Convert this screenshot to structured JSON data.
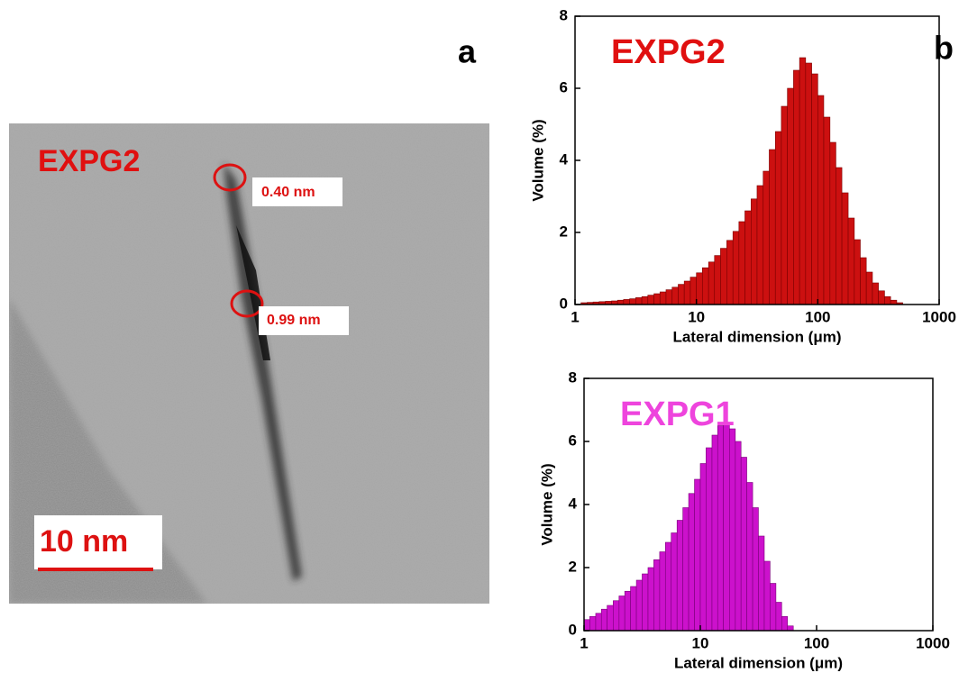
{
  "panel_a": {
    "label": "a",
    "title": "EXPG2",
    "annotations": [
      "0.40 nm",
      "0.99 nm"
    ],
    "scale_bar": "10 nm"
  },
  "panel_b_label": "b",
  "chart_data": [
    {
      "type": "histogram",
      "title": "EXPG2",
      "title_color": "#e01010",
      "color": "#cc1010",
      "edge_color": "#7a0000",
      "xlabel": "Lateral dimension (μm)",
      "ylabel": "Volume (%)",
      "xscale": "log",
      "xlim": [
        1,
        1000
      ],
      "xticks": [
        1,
        10,
        100,
        1000
      ],
      "ylim": [
        0,
        8
      ],
      "yticks": [
        0,
        2,
        4,
        6,
        8
      ],
      "bins": [
        1.12,
        1.26,
        1.41,
        1.58,
        1.78,
        2.0,
        2.24,
        2.51,
        2.82,
        3.16,
        3.55,
        3.98,
        4.47,
        5.01,
        5.62,
        6.31,
        7.08,
        7.94,
        8.91,
        10,
        11.2,
        12.6,
        14.1,
        15.8,
        17.8,
        20,
        22.4,
        25.1,
        28.2,
        31.6,
        35.5,
        39.8,
        44.7,
        50.1,
        56.2,
        63.1,
        70.8,
        79.4,
        89.1,
        100,
        112,
        126,
        141,
        158,
        178,
        200,
        224,
        251,
        282,
        316,
        355,
        398,
        447,
        501
      ],
      "values": [
        0.05,
        0.06,
        0.07,
        0.08,
        0.09,
        0.1,
        0.12,
        0.14,
        0.16,
        0.19,
        0.22,
        0.26,
        0.3,
        0.35,
        0.41,
        0.48,
        0.56,
        0.65,
        0.76,
        0.88,
        1.02,
        1.18,
        1.36,
        1.56,
        1.78,
        2.03,
        2.3,
        2.6,
        2.93,
        3.3,
        3.7,
        4.3,
        4.8,
        5.5,
        6.0,
        6.5,
        6.85,
        6.7,
        6.4,
        5.8,
        5.2,
        4.5,
        3.8,
        3.1,
        2.4,
        1.8,
        1.3,
        0.9,
        0.6,
        0.38,
        0.22,
        0.12,
        0.05
      ]
    },
    {
      "type": "histogram",
      "title": "EXPG1",
      "title_color": "#ee44dd",
      "color": "#cc11cc",
      "edge_color": "#7a007a",
      "xlabel": "Lateral dimension (μm)",
      "ylabel": "Volume (%)",
      "xscale": "log",
      "xlim": [
        1,
        1000
      ],
      "xticks": [
        1,
        10,
        100,
        1000
      ],
      "ylim": [
        0,
        8
      ],
      "yticks": [
        0,
        2,
        4,
        6,
        8
      ],
      "bins": [
        1.0,
        1.12,
        1.26,
        1.41,
        1.58,
        1.78,
        2.0,
        2.24,
        2.51,
        2.82,
        3.16,
        3.55,
        3.98,
        4.47,
        5.01,
        5.62,
        6.31,
        7.08,
        7.94,
        8.91,
        10,
        11.2,
        12.6,
        14.1,
        15.8,
        17.8,
        20,
        22.4,
        25.1,
        28.2,
        31.6,
        35.5,
        39.8,
        44.7,
        50.1,
        56.2,
        63.1
      ],
      "values": [
        0.35,
        0.45,
        0.55,
        0.68,
        0.8,
        0.95,
        1.1,
        1.25,
        1.4,
        1.6,
        1.8,
        2.0,
        2.25,
        2.5,
        2.8,
        3.1,
        3.5,
        3.9,
        4.35,
        4.8,
        5.3,
        5.8,
        6.2,
        6.5,
        6.55,
        6.4,
        6.0,
        5.5,
        4.7,
        3.9,
        3.0,
        2.2,
        1.5,
        0.9,
        0.45,
        0.15
      ]
    }
  ]
}
